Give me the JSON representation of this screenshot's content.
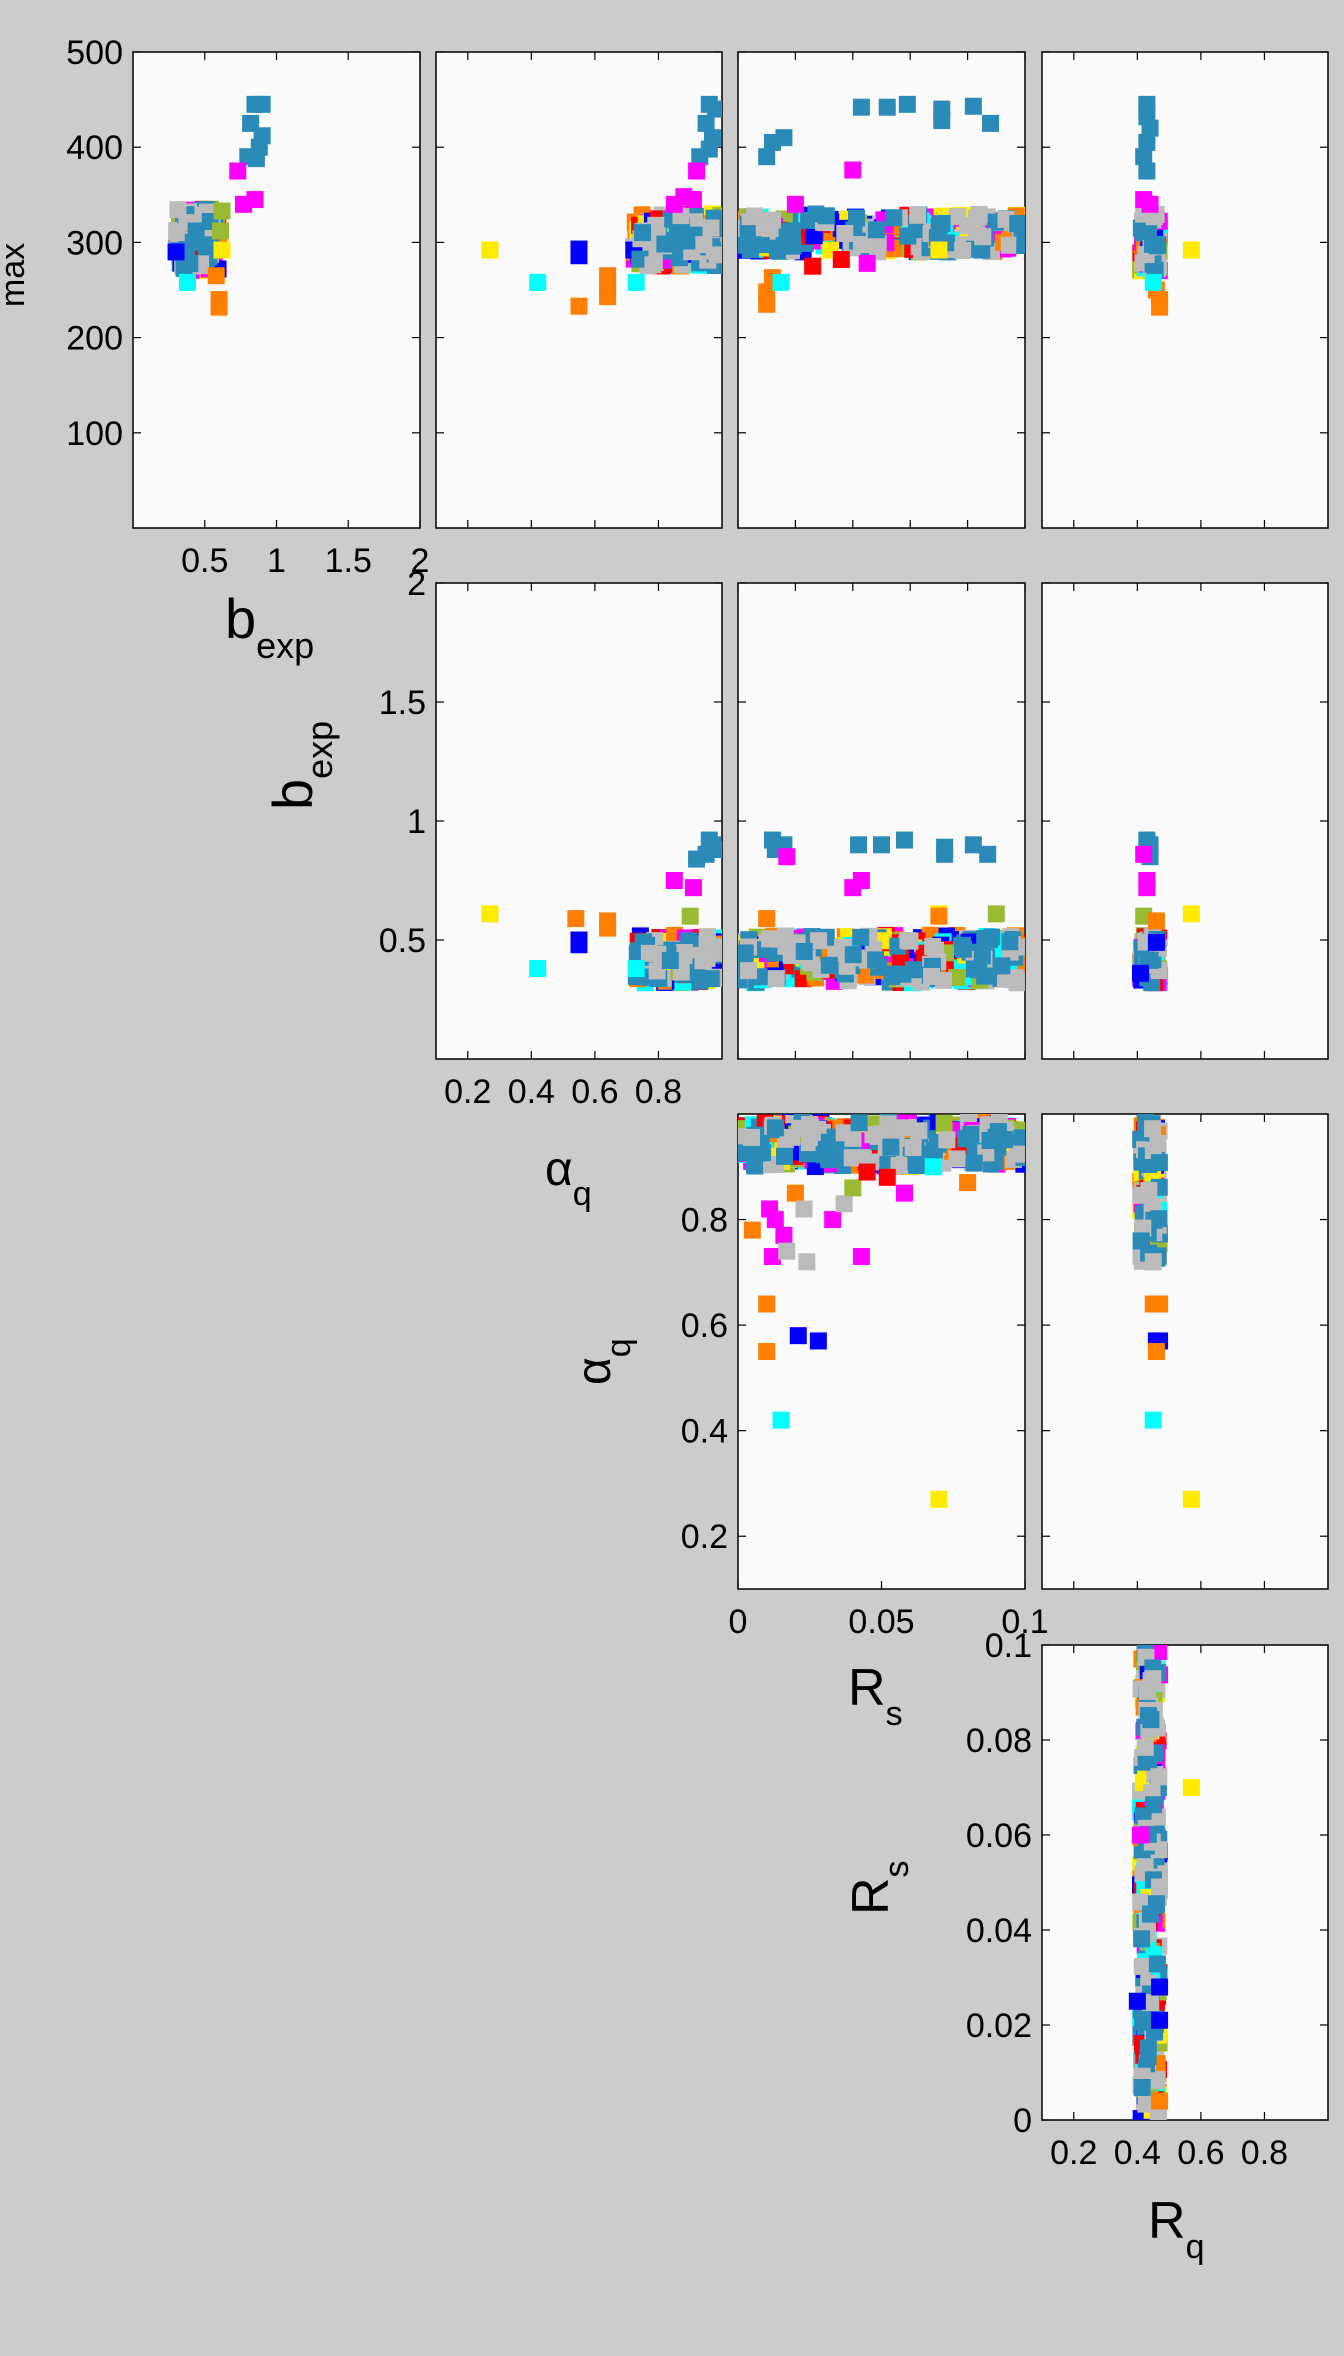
{
  "chart_data": {
    "type": "scatter",
    "layout": "pair-plot (upper triangle)",
    "variables": {
      "max": {
        "label": "max",
        "sub": "",
        "range": [
          0,
          500
        ],
        "ticks": [
          "100",
          "200",
          "300",
          "400",
          "500"
        ]
      },
      "bexp": {
        "label": "b",
        "sub": "exp",
        "range": [
          0,
          2
        ],
        "ticks": [
          "0.5",
          "1",
          "1.5",
          "2"
        ]
      },
      "alphaq": {
        "label": "α",
        "sub": "q",
        "range": [
          0.1,
          1
        ],
        "ticks": [
          "0.2",
          "0.4",
          "0.6",
          "0.8"
        ]
      },
      "Rs": {
        "label": "R",
        "sub": "s",
        "range": [
          0,
          0.1
        ],
        "ticks": [
          "0",
          "0.02",
          "0.04",
          "0.06",
          "0.08",
          "0.1"
        ],
        "xticks": [
          "0",
          "0.05",
          "0.1"
        ]
      },
      "Rq": {
        "label": "R",
        "sub": "q",
        "range": [
          0.1,
          1
        ],
        "ticks": [
          "0.2",
          "0.4",
          "0.6",
          "0.8"
        ]
      }
    },
    "series_colors": [
      "#0000ff",
      "#ff0000",
      "#ff00ff",
      "#ff7f00",
      "#00ffff",
      "#ffea00",
      "#99bb33",
      "#bbbbbb",
      "#2a8ab8"
    ],
    "panels": [
      {
        "id": "bexp-vs-max",
        "x_var": "bexp",
        "y_var": "max",
        "bounds": [
          0,
          2,
          0,
          500
        ],
        "clusters": [
          {
            "x": [
              0.3,
              0.6
            ],
            "y": [
              270,
              335
            ],
            "n": 110
          }
        ],
        "points": [
          {
            "x": 0.85,
            "y": 445,
            "c": 8
          },
          {
            "x": 0.9,
            "y": 445,
            "c": 8
          },
          {
            "x": 0.82,
            "y": 425,
            "c": 8
          },
          {
            "x": 0.9,
            "y": 412,
            "c": 8
          },
          {
            "x": 0.8,
            "y": 390,
            "c": 8
          },
          {
            "x": 0.86,
            "y": 388,
            "c": 8
          },
          {
            "x": 0.88,
            "y": 400,
            "c": 8
          },
          {
            "x": 0.73,
            "y": 375,
            "c": 2
          },
          {
            "x": 0.77,
            "y": 340,
            "c": 2
          },
          {
            "x": 0.85,
            "y": 345,
            "c": 2
          },
          {
            "x": 0.6,
            "y": 240,
            "c": 3
          },
          {
            "x": 0.6,
            "y": 232,
            "c": 3
          },
          {
            "x": 0.58,
            "y": 265,
            "c": 3
          },
          {
            "x": 0.38,
            "y": 258,
            "c": 4
          },
          {
            "x": 0.62,
            "y": 292,
            "c": 5
          },
          {
            "x": 0.62,
            "y": 333,
            "c": 6
          },
          {
            "x": 0.61,
            "y": 312,
            "c": 6
          },
          {
            "x": 0.3,
            "y": 290,
            "c": 0
          },
          {
            "x": 0.42,
            "y": 300,
            "c": 8
          },
          {
            "x": 0.44,
            "y": 312,
            "c": 8
          }
        ]
      },
      {
        "id": "alphaq-vs-max",
        "x_var": "alphaq",
        "y_var": "max",
        "bounds": [
          0.1,
          1,
          0,
          500
        ],
        "clusters": [
          {
            "x": [
              0.72,
              1.0
            ],
            "y": [
              275,
              330
            ],
            "n": 150
          }
        ],
        "points": [
          {
            "x": 0.27,
            "y": 292,
            "c": 5
          },
          {
            "x": 0.42,
            "y": 258,
            "c": 4
          },
          {
            "x": 0.55,
            "y": 293,
            "c": 0
          },
          {
            "x": 0.55,
            "y": 286,
            "c": 0
          },
          {
            "x": 0.55,
            "y": 233,
            "c": 3
          },
          {
            "x": 0.64,
            "y": 243,
            "c": 3
          },
          {
            "x": 0.64,
            "y": 265,
            "c": 3
          },
          {
            "x": 0.64,
            "y": 255,
            "c": 3
          },
          {
            "x": 0.73,
            "y": 258,
            "c": 4
          },
          {
            "x": 0.96,
            "y": 445,
            "c": 8
          },
          {
            "x": 0.98,
            "y": 440,
            "c": 8
          },
          {
            "x": 0.95,
            "y": 425,
            "c": 8
          },
          {
            "x": 0.97,
            "y": 410,
            "c": 8
          },
          {
            "x": 0.93,
            "y": 390,
            "c": 8
          },
          {
            "x": 0.96,
            "y": 398,
            "c": 8
          },
          {
            "x": 0.92,
            "y": 375,
            "c": 2
          },
          {
            "x": 0.85,
            "y": 340,
            "c": 2
          },
          {
            "x": 0.91,
            "y": 345,
            "c": 2
          },
          {
            "x": 0.88,
            "y": 348,
            "c": 2
          }
        ]
      },
      {
        "id": "Rs-vs-max",
        "x_var": "Rs",
        "y_var": "max",
        "bounds": [
          0,
          0.1,
          0,
          500
        ],
        "clusters": [
          {
            "x": [
              0.0,
              0.1
            ],
            "y": [
              290,
              330
            ],
            "n": 260
          }
        ],
        "points": [
          {
            "x": 0.01,
            "y": 390,
            "c": 8
          },
          {
            "x": 0.012,
            "y": 405,
            "c": 8
          },
          {
            "x": 0.016,
            "y": 410,
            "c": 8
          },
          {
            "x": 0.043,
            "y": 442,
            "c": 8
          },
          {
            "x": 0.052,
            "y": 442,
            "c": 8
          },
          {
            "x": 0.059,
            "y": 445,
            "c": 8
          },
          {
            "x": 0.071,
            "y": 440,
            "c": 8
          },
          {
            "x": 0.082,
            "y": 443,
            "c": 8
          },
          {
            "x": 0.088,
            "y": 425,
            "c": 8
          },
          {
            "x": 0.071,
            "y": 428,
            "c": 8
          },
          {
            "x": 0.04,
            "y": 376,
            "c": 2
          },
          {
            "x": 0.02,
            "y": 340,
            "c": 2
          },
          {
            "x": 0.01,
            "y": 235,
            "c": 3
          },
          {
            "x": 0.01,
            "y": 248,
            "c": 3
          },
          {
            "x": 0.012,
            "y": 263,
            "c": 3
          },
          {
            "x": 0.015,
            "y": 258,
            "c": 4
          },
          {
            "x": 0.07,
            "y": 292,
            "c": 5
          },
          {
            "x": 0.045,
            "y": 278,
            "c": 2
          },
          {
            "x": 0.026,
            "y": 275,
            "c": 1
          },
          {
            "x": 0.036,
            "y": 282,
            "c": 1
          }
        ]
      },
      {
        "id": "Rq-vs-max",
        "x_var": "Rq",
        "y_var": "max",
        "bounds": [
          0.1,
          1,
          0,
          500
        ],
        "clusters": [
          {
            "x": [
              0.41,
              0.47
            ],
            "y": [
              270,
              330
            ],
            "n": 80
          }
        ],
        "points": [
          {
            "x": 0.43,
            "y": 445,
            "c": 8
          },
          {
            "x": 0.43,
            "y": 432,
            "c": 8
          },
          {
            "x": 0.44,
            "y": 420,
            "c": 8
          },
          {
            "x": 0.43,
            "y": 405,
            "c": 8
          },
          {
            "x": 0.42,
            "y": 390,
            "c": 8
          },
          {
            "x": 0.43,
            "y": 375,
            "c": 8
          },
          {
            "x": 0.42,
            "y": 345,
            "c": 2
          },
          {
            "x": 0.44,
            "y": 340,
            "c": 2
          },
          {
            "x": 0.47,
            "y": 240,
            "c": 3
          },
          {
            "x": 0.47,
            "y": 232,
            "c": 3
          },
          {
            "x": 0.46,
            "y": 250,
            "c": 3
          },
          {
            "x": 0.45,
            "y": 258,
            "c": 4
          },
          {
            "x": 0.57,
            "y": 292,
            "c": 5
          }
        ]
      },
      {
        "id": "alphaq-vs-bexp",
        "x_var": "alphaq",
        "y_var": "bexp",
        "bounds": [
          0.1,
          1,
          0,
          2
        ],
        "clusters": [
          {
            "x": [
              0.73,
              1.0
            ],
            "y": [
              0.32,
              0.52
            ],
            "n": 160
          }
        ],
        "points": [
          {
            "x": 0.27,
            "y": 0.61,
            "c": 5
          },
          {
            "x": 0.42,
            "y": 0.38,
            "c": 4
          },
          {
            "x": 0.55,
            "y": 0.5,
            "c": 0
          },
          {
            "x": 0.55,
            "y": 0.48,
            "c": 0
          },
          {
            "x": 0.54,
            "y": 0.59,
            "c": 3
          },
          {
            "x": 0.64,
            "y": 0.58,
            "c": 3
          },
          {
            "x": 0.64,
            "y": 0.55,
            "c": 3
          },
          {
            "x": 0.73,
            "y": 0.38,
            "c": 4
          },
          {
            "x": 0.96,
            "y": 0.92,
            "c": 8
          },
          {
            "x": 0.97,
            "y": 0.9,
            "c": 8
          },
          {
            "x": 0.95,
            "y": 0.86,
            "c": 8
          },
          {
            "x": 0.92,
            "y": 0.84,
            "c": 8
          },
          {
            "x": 0.98,
            "y": 0.88,
            "c": 8
          },
          {
            "x": 0.85,
            "y": 0.75,
            "c": 2
          },
          {
            "x": 0.91,
            "y": 0.72,
            "c": 2
          },
          {
            "x": 0.9,
            "y": 0.6,
            "c": 6
          }
        ]
      },
      {
        "id": "Rs-vs-bexp",
        "x_var": "Rs",
        "y_var": "bexp",
        "bounds": [
          0,
          0.1,
          0,
          2
        ],
        "clusters": [
          {
            "x": [
              0.0,
              0.1
            ],
            "y": [
              0.32,
              0.52
            ],
            "n": 260
          }
        ],
        "points": [
          {
            "x": 0.012,
            "y": 0.92,
            "c": 8
          },
          {
            "x": 0.013,
            "y": 0.88,
            "c": 8
          },
          {
            "x": 0.016,
            "y": 0.9,
            "c": 8
          },
          {
            "x": 0.042,
            "y": 0.9,
            "c": 8
          },
          {
            "x": 0.05,
            "y": 0.9,
            "c": 8
          },
          {
            "x": 0.058,
            "y": 0.92,
            "c": 8
          },
          {
            "x": 0.072,
            "y": 0.89,
            "c": 8
          },
          {
            "x": 0.072,
            "y": 0.86,
            "c": 8
          },
          {
            "x": 0.082,
            "y": 0.9,
            "c": 8
          },
          {
            "x": 0.087,
            "y": 0.86,
            "c": 8
          },
          {
            "x": 0.017,
            "y": 0.85,
            "c": 2
          },
          {
            "x": 0.04,
            "y": 0.72,
            "c": 2
          },
          {
            "x": 0.043,
            "y": 0.75,
            "c": 2
          },
          {
            "x": 0.07,
            "y": 0.61,
            "c": 5
          },
          {
            "x": 0.09,
            "y": 0.61,
            "c": 6
          },
          {
            "x": 0.07,
            "y": 0.6,
            "c": 3
          },
          {
            "x": 0.01,
            "y": 0.59,
            "c": 3
          }
        ]
      },
      {
        "id": "Rq-vs-bexp",
        "x_var": "Rq",
        "y_var": "bexp",
        "bounds": [
          0.1,
          1,
          0,
          2
        ],
        "clusters": [
          {
            "x": [
              0.41,
              0.47
            ],
            "y": [
              0.32,
              0.52
            ],
            "n": 70
          }
        ],
        "points": [
          {
            "x": 0.43,
            "y": 0.92,
            "c": 8
          },
          {
            "x": 0.44,
            "y": 0.9,
            "c": 8
          },
          {
            "x": 0.43,
            "y": 0.88,
            "c": 8
          },
          {
            "x": 0.44,
            "y": 0.85,
            "c": 8
          },
          {
            "x": 0.42,
            "y": 0.86,
            "c": 2
          },
          {
            "x": 0.43,
            "y": 0.75,
            "c": 2
          },
          {
            "x": 0.43,
            "y": 0.72,
            "c": 2
          },
          {
            "x": 0.42,
            "y": 0.6,
            "c": 6
          },
          {
            "x": 0.46,
            "y": 0.58,
            "c": 3
          },
          {
            "x": 0.57,
            "y": 0.61,
            "c": 5
          },
          {
            "x": 0.46,
            "y": 0.49,
            "c": 0
          },
          {
            "x": 0.41,
            "y": 0.36,
            "c": 0
          }
        ]
      },
      {
        "id": "Rs-vs-alphaq",
        "x_var": "Rs",
        "y_var": "alphaq",
        "bounds": [
          0,
          0.1,
          0.1,
          1
        ],
        "clusters": [
          {
            "x": [
              0.0,
              0.1
            ],
            "y": [
              0.9,
              0.985
            ],
            "n": 280
          }
        ],
        "points": [
          {
            "x": 0.015,
            "y": 0.42,
            "c": 4
          },
          {
            "x": 0.07,
            "y": 0.27,
            "c": 5
          },
          {
            "x": 0.021,
            "y": 0.58,
            "c": 0
          },
          {
            "x": 0.028,
            "y": 0.57,
            "c": 0
          },
          {
            "x": 0.01,
            "y": 0.64,
            "c": 3
          },
          {
            "x": 0.01,
            "y": 0.55,
            "c": 3
          },
          {
            "x": 0.005,
            "y": 0.78,
            "c": 3
          },
          {
            "x": 0.012,
            "y": 0.73,
            "c": 2
          },
          {
            "x": 0.013,
            "y": 0.8,
            "c": 2
          },
          {
            "x": 0.016,
            "y": 0.77,
            "c": 2
          },
          {
            "x": 0.011,
            "y": 0.82,
            "c": 2
          },
          {
            "x": 0.017,
            "y": 0.74,
            "c": 7
          },
          {
            "x": 0.024,
            "y": 0.72,
            "c": 7
          },
          {
            "x": 0.043,
            "y": 0.73,
            "c": 2
          },
          {
            "x": 0.02,
            "y": 0.85,
            "c": 3
          },
          {
            "x": 0.023,
            "y": 0.82,
            "c": 7
          },
          {
            "x": 0.033,
            "y": 0.8,
            "c": 2
          },
          {
            "x": 0.037,
            "y": 0.83,
            "c": 7
          },
          {
            "x": 0.04,
            "y": 0.86,
            "c": 6
          },
          {
            "x": 0.058,
            "y": 0.85,
            "c": 2
          },
          {
            "x": 0.068,
            "y": 0.9,
            "c": 4
          },
          {
            "x": 0.08,
            "y": 0.87,
            "c": 3
          },
          {
            "x": 0.052,
            "y": 0.88,
            "c": 1
          },
          {
            "x": 0.045,
            "y": 0.89,
            "c": 1
          }
        ]
      },
      {
        "id": "Rq-vs-alphaq",
        "x_var": "Rq",
        "y_var": "alphaq",
        "bounds": [
          0.1,
          1,
          0.1,
          1
        ],
        "clusters": [
          {
            "x": [
              0.41,
              0.47
            ],
            "y": [
              0.72,
              0.985
            ],
            "n": 110
          }
        ],
        "points": [
          {
            "x": 0.45,
            "y": 0.64,
            "c": 3
          },
          {
            "x": 0.47,
            "y": 0.64,
            "c": 3
          },
          {
            "x": 0.46,
            "y": 0.57,
            "c": 0
          },
          {
            "x": 0.47,
            "y": 0.57,
            "c": 0
          },
          {
            "x": 0.46,
            "y": 0.55,
            "c": 3
          },
          {
            "x": 0.45,
            "y": 0.42,
            "c": 4
          },
          {
            "x": 0.57,
            "y": 0.27,
            "c": 5
          },
          {
            "x": 0.45,
            "y": 0.72,
            "c": 7
          }
        ]
      },
      {
        "id": "Rq-vs-Rs",
        "x_var": "Rq",
        "y_var": "Rs",
        "bounds": [
          0.1,
          1,
          0,
          0.1
        ],
        "clusters": [
          {
            "x": [
              0.41,
              0.47
            ],
            "y": [
              0.0,
              0.1
            ],
            "n": 230
          }
        ],
        "points": [
          {
            "x": 0.57,
            "y": 0.07,
            "c": 5
          },
          {
            "x": 0.47,
            "y": 0.028,
            "c": 0
          },
          {
            "x": 0.4,
            "y": 0.025,
            "c": 0
          },
          {
            "x": 0.47,
            "y": 0.021,
            "c": 0
          },
          {
            "x": 0.47,
            "y": 0.004,
            "c": 3
          },
          {
            "x": 0.41,
            "y": 0.06,
            "c": 2
          }
        ]
      }
    ]
  }
}
